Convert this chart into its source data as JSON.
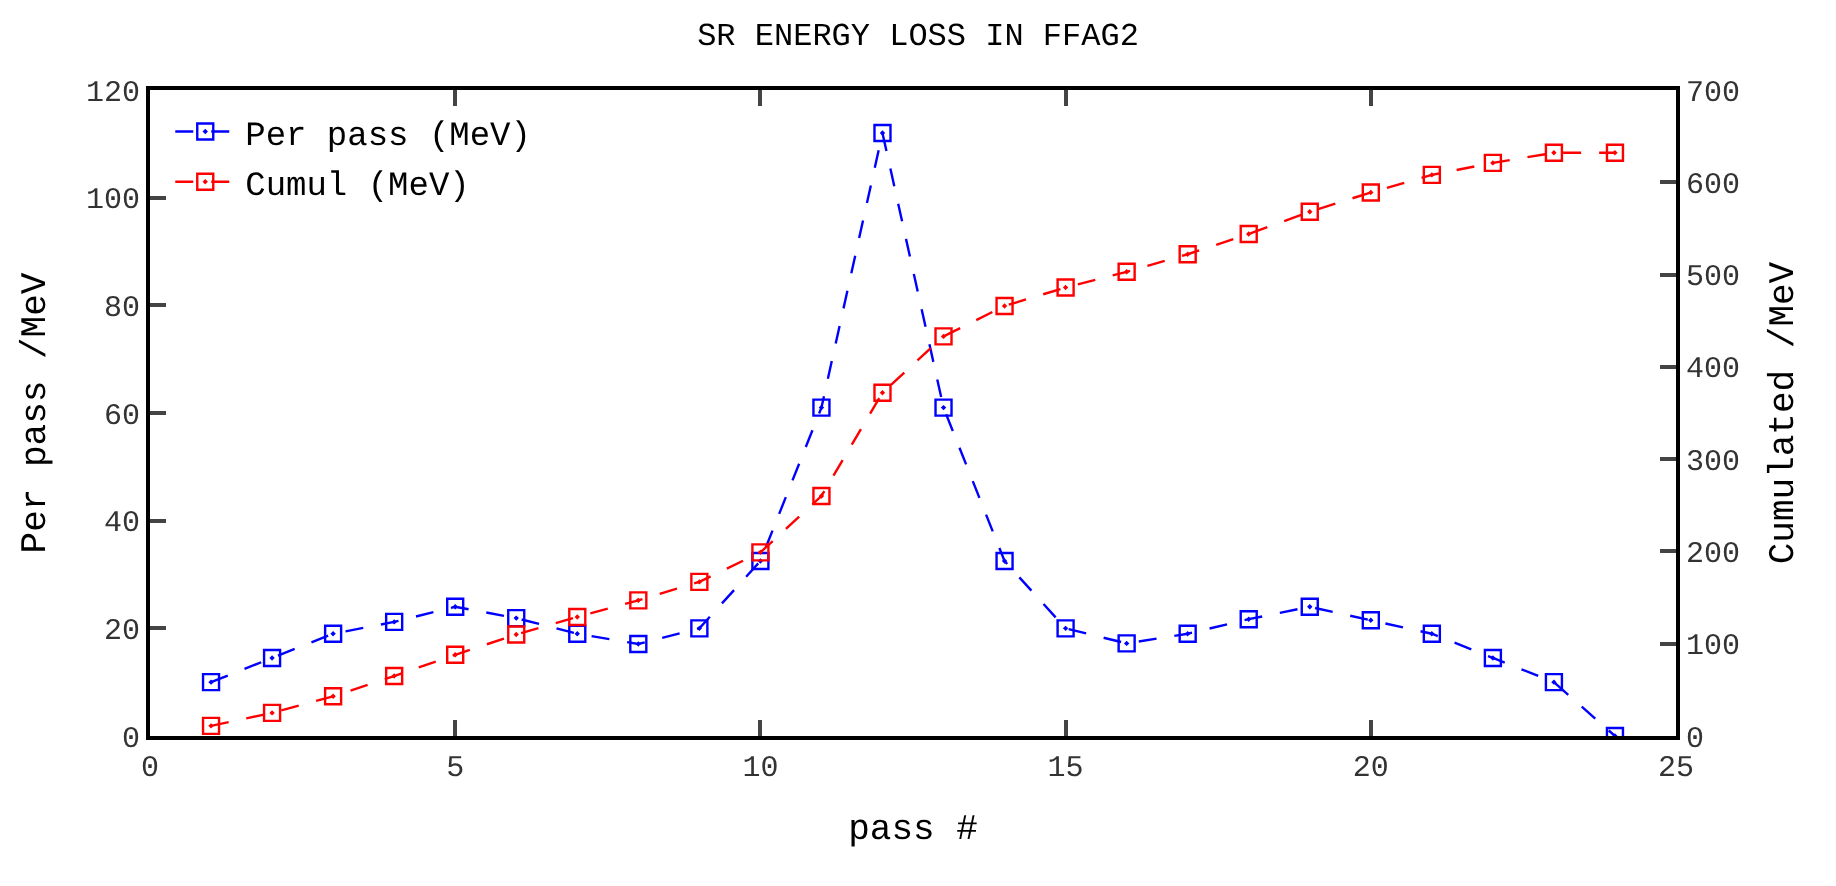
{
  "chart_data": {
    "type": "line",
    "title": "SR ENERGY LOSS IN FFAG2",
    "xlabel": "pass #",
    "ylabel": "Per pass /MeV",
    "y2label": "Cumulated /MeV",
    "x": [
      1,
      2,
      3,
      4,
      5,
      6,
      7,
      8,
      9,
      10,
      11,
      12,
      13,
      14,
      15,
      16,
      17,
      18,
      19,
      20,
      21,
      22,
      23,
      24
    ],
    "series": [
      {
        "name": "Per pass (MeV)",
        "color": "#0000ff",
        "values": [
          10,
          14.5,
          19,
          21.2,
          24,
          21.9,
          19,
          17.1,
          20,
          32.5,
          61,
          112,
          61,
          32.5,
          20,
          17.2,
          19,
          21.7,
          24,
          21.5,
          19,
          14.5,
          10,
          0
        ]
      },
      {
        "name": "Cumul (MeV)",
        "color": "#ff0000",
        "axis": "y2",
        "values": [
          11,
          25,
          43,
          65,
          88,
          110,
          129,
          147,
          167,
          199,
          260,
          372,
          433,
          466,
          486,
          503,
          522,
          544,
          568,
          589,
          608,
          621,
          632,
          632
        ]
      }
    ],
    "xlim": [
      0,
      25
    ],
    "xticks": [
      0,
      5,
      10,
      15,
      20,
      25
    ],
    "ylim": [
      0,
      120
    ],
    "yticks": [
      0,
      20,
      40,
      60,
      80,
      100,
      120
    ],
    "y2lim": [
      0,
      700
    ],
    "y2ticks": [
      0,
      100,
      200,
      300,
      400,
      500,
      600,
      700
    ],
    "marker": "square",
    "line_style": "dashed",
    "legend": "top left"
  }
}
